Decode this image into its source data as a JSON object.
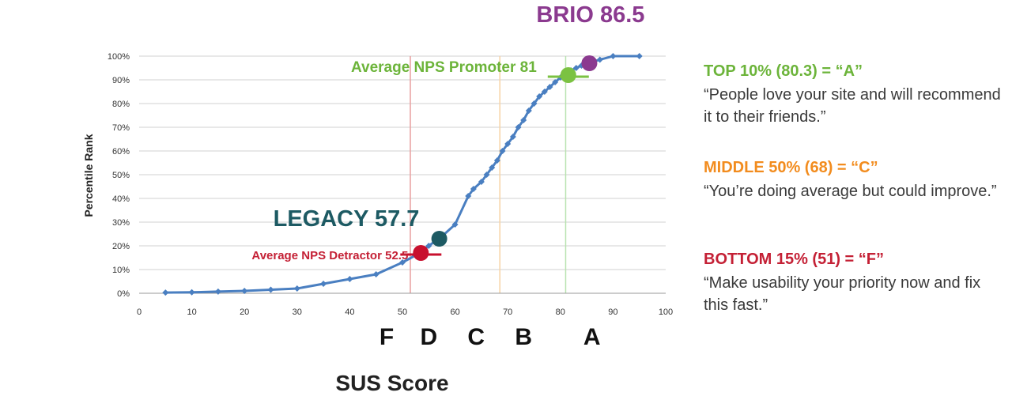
{
  "chart_data": {
    "type": "line",
    "ylabel": "Percentile Rank",
    "xlabel": "SUS Score",
    "xlim": [
      0,
      100
    ],
    "ylim": [
      0,
      100
    ],
    "x_ticks": [
      "0",
      "10",
      "20",
      "30",
      "40",
      "50",
      "60",
      "70",
      "80",
      "90",
      "100"
    ],
    "y_ticks": [
      "0%",
      "10%",
      "20%",
      "30%",
      "40%",
      "50%",
      "60%",
      "70%",
      "80%",
      "90%",
      "100%"
    ],
    "grid": "horizontal",
    "line_color": "#4a7fc1",
    "series": [
      {
        "x": [
          5,
          10,
          15,
          20,
          25,
          30,
          35,
          40,
          45,
          50,
          52.5,
          55,
          57.5,
          60,
          62.5,
          63.5,
          65,
          66,
          67,
          68,
          69,
          70,
          71,
          72,
          73,
          74,
          75,
          76,
          77,
          78,
          79,
          80,
          81,
          82,
          83,
          84,
          85,
          87.5,
          90,
          95
        ],
        "y": [
          0.3,
          0.4,
          0.7,
          1,
          1.5,
          2,
          4,
          6,
          8,
          13,
          16,
          20,
          24,
          29,
          41,
          44,
          47,
          50,
          53,
          56,
          60,
          63,
          66,
          70,
          73,
          77,
          80,
          83,
          85,
          87,
          89,
          91,
          92.5,
          94,
          95,
          96,
          97,
          98.5,
          100,
          100
        ]
      }
    ],
    "grade_lines": [
      {
        "x": 51.5,
        "color": "#e8a0a0"
      },
      {
        "x": 68.5,
        "color": "#f7d3a5"
      },
      {
        "x": 81,
        "color": "#b9e3b0"
      }
    ],
    "grade_letters": [
      {
        "label": "F",
        "x": 47
      },
      {
        "label": "D",
        "x": 55
      },
      {
        "label": "C",
        "x": 64
      },
      {
        "label": "B",
        "x": 73
      },
      {
        "label": "A",
        "x": 86
      }
    ],
    "markers": [
      {
        "label": "BRIO 86.5",
        "x": 85.5,
        "y": 97,
        "color": "#8b3a8f",
        "label_color": "#8b3a8f",
        "bar": false
      },
      {
        "label": "Average NPS Promoter 81",
        "x": 81.5,
        "y": 92,
        "color": "#7bc242",
        "label_color": "#6cb43a",
        "bar": true
      },
      {
        "label": "LEGACY 57.7",
        "x": 57,
        "y": 23,
        "color": "#1d5a63",
        "label_color": "#1d5a63",
        "bar": false
      },
      {
        "label": "Average NPS Detractor 52.5",
        "x": 53.5,
        "y": 17,
        "color": "#c8102e",
        "label_color": "#c42035",
        "bar": true
      }
    ]
  },
  "grades": [
    {
      "heading": "TOP 10% (80.3) = “A”",
      "text": "“People love your site and will recommend it to their friends.”",
      "color": "#6cb43a"
    },
    {
      "heading": "MIDDLE 50% (68) = “C”",
      "text": "“You’re doing average but could improve.”",
      "color": "#f28c1e"
    },
    {
      "heading": "BOTTOM 15% (51)  = “F”",
      "text": "“Make usability your priority now and fix this fast.”",
      "color": "#c42035"
    }
  ]
}
